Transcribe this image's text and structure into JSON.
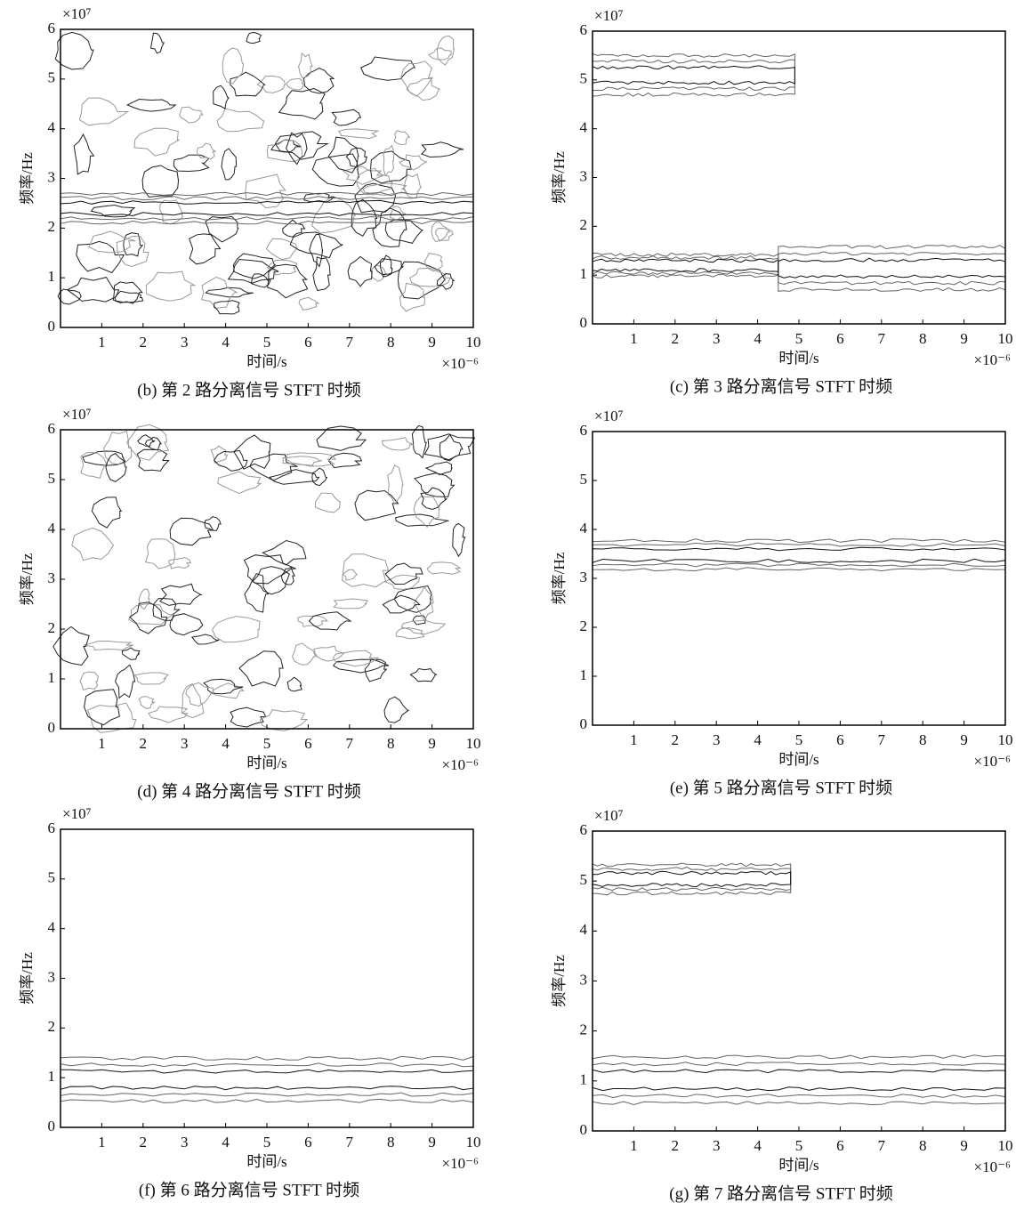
{
  "chart_data": [
    {
      "type": "contour",
      "title": "(b) 第 2 路分离信号 STFT 时频",
      "xlabel": "时间/s",
      "ylabel": "频率/Hz",
      "x_offset_text": "×10⁻⁶",
      "y_offset_text": "×10⁷",
      "xlim": [
        0,
        10
      ],
      "xticks": [
        1,
        2,
        3,
        4,
        5,
        6,
        7,
        8,
        9,
        10
      ],
      "ylim": [
        0,
        6
      ],
      "yticks": [
        0,
        1,
        2,
        3,
        4,
        5,
        6
      ]
    },
    {
      "type": "contour",
      "title": "(c) 第 3 路分离信号 STFT 时频",
      "xlabel": "时间/s",
      "ylabel": "频率/Hz",
      "x_offset_text": "×10⁻⁶",
      "y_offset_text": "×10⁷",
      "xlim": [
        0,
        10
      ],
      "xticks": [
        1,
        2,
        3,
        4,
        5,
        6,
        7,
        8,
        9,
        10
      ],
      "ylim": [
        0,
        6
      ],
      "yticks": [
        0,
        1,
        2,
        3,
        4,
        5,
        6
      ]
    },
    {
      "type": "contour",
      "title": "(d) 第 4 路分离信号 STFT 时频",
      "xlabel": "时间/s",
      "ylabel": "频率/Hz",
      "x_offset_text": "×10⁻⁶",
      "y_offset_text": "×10⁷",
      "xlim": [
        0,
        10
      ],
      "xticks": [
        1,
        2,
        3,
        4,
        5,
        6,
        7,
        8,
        9,
        10
      ],
      "ylim": [
        0,
        6
      ],
      "yticks": [
        0,
        1,
        2,
        3,
        4,
        5,
        6
      ]
    },
    {
      "type": "contour",
      "title": "(e) 第 5 路分离信号 STFT 时频",
      "xlabel": "时间/s",
      "ylabel": "频率/Hz",
      "x_offset_text": "×10⁻⁶",
      "y_offset_text": "×10⁷",
      "xlim": [
        0,
        10
      ],
      "xticks": [
        1,
        2,
        3,
        4,
        5,
        6,
        7,
        8,
        9,
        10
      ],
      "ylim": [
        0,
        6
      ],
      "yticks": [
        0,
        1,
        2,
        3,
        4,
        5,
        6
      ]
    },
    {
      "type": "contour",
      "title": "(f) 第 6 路分离信号 STFT 时频",
      "xlabel": "时间/s",
      "ylabel": "频率/Hz",
      "x_offset_text": "×10⁻⁶",
      "y_offset_text": "×10⁷",
      "xlim": [
        0,
        10
      ],
      "xticks": [
        1,
        2,
        3,
        4,
        5,
        6,
        7,
        8,
        9,
        10
      ],
      "ylim": [
        0,
        6
      ],
      "yticks": [
        0,
        1,
        2,
        3,
        4,
        5,
        6
      ]
    },
    {
      "type": "contour",
      "title": "(g) 第 7 路分离信号 STFT 时频",
      "xlabel": "时间/s",
      "ylabel": "频率/Hz",
      "x_offset_text": "×10⁻⁶",
      "y_offset_text": "×10⁷",
      "xlim": [
        0,
        10
      ],
      "xticks": [
        1,
        2,
        3,
        4,
        5,
        6,
        7,
        8,
        9,
        10
      ],
      "ylim": [
        0,
        6
      ],
      "yticks": [
        0,
        1,
        2,
        3,
        4,
        5,
        6
      ]
    }
  ]
}
